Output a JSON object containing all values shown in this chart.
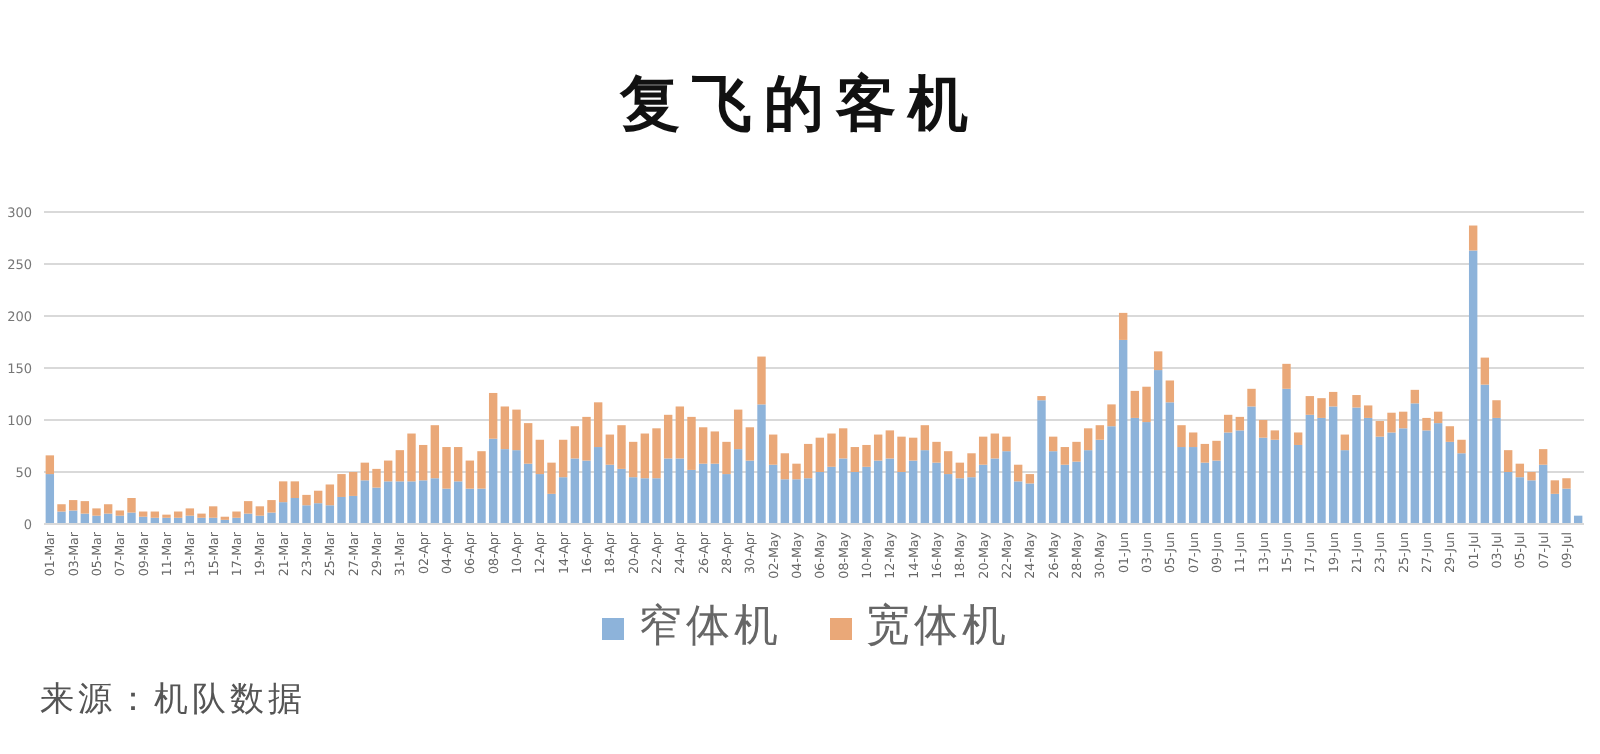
{
  "chart_data": {
    "type": "bar",
    "stacked": true,
    "title": "复飞的客机",
    "categories": [
      "01-Mar",
      null,
      "03-Mar",
      null,
      "05-Mar",
      null,
      "07-Mar",
      null,
      "09-Mar",
      null,
      "11-Mar",
      null,
      "13-Mar",
      null,
      "15-Mar",
      null,
      "17-Mar",
      null,
      "19-Mar",
      null,
      "21-Mar",
      null,
      "23-Mar",
      null,
      "25-Mar",
      null,
      "27-Mar",
      null,
      "29-Mar",
      null,
      "31-Mar",
      null,
      "02-Apr",
      null,
      "04-Apr",
      null,
      "06-Apr",
      null,
      "08-Apr",
      null,
      "10-Apr",
      null,
      "12-Apr",
      null,
      "14-Apr",
      null,
      "16-Apr",
      null,
      "18-Apr",
      null,
      "20-Apr",
      null,
      "22-Apr",
      null,
      "24-Apr",
      null,
      "26-Apr",
      null,
      "28-Apr",
      null,
      "30-Apr",
      null,
      "02-May",
      null,
      "04-May",
      null,
      "06-May",
      null,
      "08-May",
      null,
      "10-May",
      null,
      "12-May",
      null,
      "14-May",
      null,
      "16-May",
      null,
      "18-May",
      null,
      "20-May",
      null,
      "22-May",
      null,
      "24-May",
      null,
      "26-May",
      null,
      "28-May",
      null,
      "30-May",
      null,
      "01-Jun",
      null,
      "03-Jun",
      null,
      "05-Jun",
      null,
      "07-Jun",
      null,
      "09-Jun",
      null,
      "11-Jun",
      null,
      "13-Jun",
      null,
      "15-Jun",
      null,
      "17-Jun",
      null,
      "19-Jun",
      null,
      "21-Jun",
      null,
      "23-Jun",
      null,
      "25-Jun",
      null,
      "27-Jun",
      null,
      "29-Jun",
      null,
      "01-Jul",
      null,
      "03-Jul",
      null,
      "05-Jul",
      null,
      "07-Jul",
      null,
      "09-Jul",
      null
    ],
    "series": [
      {
        "name": "窄体机",
        "color": "#8db3da",
        "values": [
          48,
          12,
          13,
          10,
          8,
          10,
          8,
          11,
          7,
          6,
          6,
          6,
          8,
          6,
          6,
          4,
          6,
          10,
          8,
          11,
          21,
          25,
          18,
          20,
          18,
          26,
          27,
          42,
          35,
          41,
          41,
          41,
          42,
          44,
          34,
          41,
          34,
          34,
          82,
          72,
          71,
          58,
          48,
          29,
          45,
          63,
          61,
          74,
          57,
          53,
          45,
          44,
          44,
          63,
          63,
          52,
          58,
          58,
          48,
          72,
          61,
          115,
          57,
          43,
          43,
          44,
          50,
          55,
          63,
          50,
          55,
          61,
          63,
          50,
          61,
          71,
          59,
          48,
          44,
          45,
          57,
          63,
          70,
          41,
          39,
          119,
          70,
          57,
          60,
          71,
          81,
          94,
          177,
          102,
          98,
          148,
          117,
          74,
          74,
          59,
          61,
          88,
          90,
          113,
          83,
          81,
          130,
          76,
          105,
          102,
          113,
          71,
          112,
          102,
          84,
          88,
          92,
          116,
          90,
          97,
          79,
          68,
          263,
          134,
          102,
          50,
          45,
          42,
          57,
          29,
          34,
          8
        ]
      },
      {
        "name": "宽体机",
        "color": "#eaa878",
        "values": [
          18,
          7,
          10,
          12,
          7,
          9,
          5,
          14,
          5,
          6,
          3,
          6,
          7,
          4,
          11,
          3,
          6,
          12,
          9,
          12,
          20,
          16,
          10,
          12,
          20,
          22,
          23,
          17,
          18,
          20,
          30,
          46,
          34,
          51,
          40,
          33,
          27,
          36,
          44,
          41,
          39,
          39,
          33,
          30,
          36,
          31,
          42,
          43,
          29,
          42,
          34,
          43,
          48,
          42,
          50,
          51,
          35,
          31,
          31,
          38,
          32,
          46,
          29,
          25,
          15,
          33,
          33,
          32,
          29,
          24,
          21,
          25,
          27,
          34,
          22,
          24,
          20,
          22,
          15,
          23,
          27,
          24,
          14,
          16,
          9,
          4,
          14,
          17,
          19,
          21,
          14,
          21,
          26,
          26,
          34,
          18,
          21,
          21,
          14,
          18,
          19,
          17,
          13,
          17,
          17,
          9,
          24,
          12,
          18,
          19,
          14,
          15,
          12,
          12,
          15,
          19,
          16,
          13,
          12,
          11,
          15,
          13,
          24,
          26,
          17,
          21,
          13,
          8,
          15,
          13,
          10,
          0
        ]
      }
    ],
    "ylim": [
      0,
      300
    ],
    "yticks": [
      0,
      50,
      100,
      150,
      200,
      250,
      300
    ],
    "grid": "y",
    "legend": "bottom",
    "annotations": [
      "来源：机队数据"
    ]
  }
}
